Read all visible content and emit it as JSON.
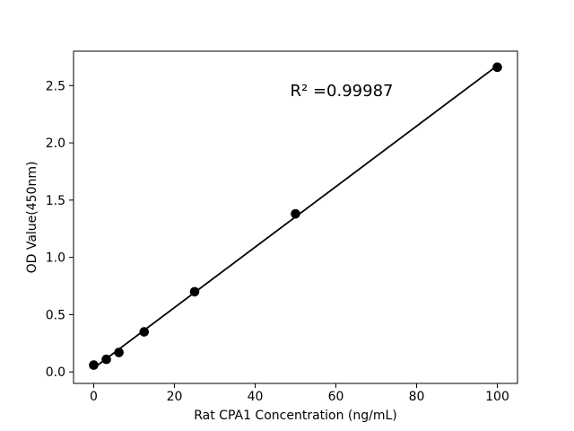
{
  "figure": {
    "background": "#ffffff"
  },
  "chart_data": {
    "type": "scatter",
    "title": "",
    "xlabel": "Rat CPA1 Concentration (ng/mL)",
    "ylabel": "OD Value(450nm)",
    "annotation": "R² =0.99987",
    "annotation_anchor": {
      "x": 61,
      "y": 2.46
    },
    "x": [
      0,
      3.125,
      6.25,
      12.5,
      25,
      50,
      100
    ],
    "y": [
      0.06,
      0.11,
      0.17,
      0.35,
      0.7,
      1.38,
      2.66
    ],
    "fit_line": {
      "slope": 0.0264,
      "intercept": 0.034,
      "x_start": 0,
      "x_end": 100
    },
    "xlim": [
      -5,
      105
    ],
    "ylim": [
      -0.1,
      2.8
    ],
    "x_ticks": [
      0,
      20,
      40,
      60,
      80,
      100
    ],
    "x_tick_labels": [
      "0",
      "20",
      "40",
      "60",
      "80",
      "100"
    ],
    "y_ticks": [
      0.0,
      0.5,
      1.0,
      1.5,
      2.0,
      2.5
    ],
    "y_tick_labels": [
      "0.0",
      "0.5",
      "1.0",
      "1.5",
      "2.0",
      "2.5"
    ],
    "grid": false,
    "legend": null,
    "colors": {
      "marker": "#000000",
      "line": "#000000",
      "axis": "#000000",
      "text": "#000000",
      "background": "#ffffff"
    }
  }
}
